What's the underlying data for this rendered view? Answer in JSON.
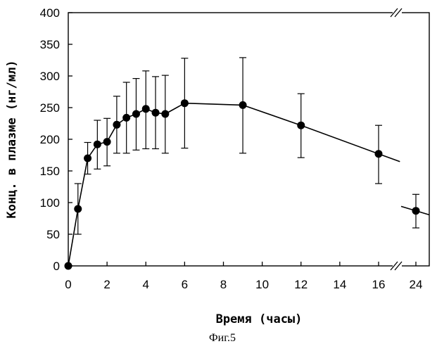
{
  "chart_data": {
    "type": "line",
    "xlabel": "Время (часы)",
    "ylabel": "Конц. в плазме (нг/мл)",
    "caption": "Фиг.5",
    "ylim": [
      0,
      400
    ],
    "xlim": [
      0,
      24
    ],
    "x_axis_break": {
      "between": [
        16,
        24
      ]
    },
    "y_ticks": [
      0,
      50,
      100,
      150,
      200,
      250,
      300,
      350,
      400
    ],
    "x_ticks": [
      0,
      2,
      4,
      6,
      8,
      10,
      12,
      14,
      16,
      24
    ],
    "series": [
      {
        "points": [
          {
            "x": 0,
            "y": 0,
            "err_low": 0,
            "err_high": 0
          },
          {
            "x": 0.5,
            "y": 90,
            "err_low": 50,
            "err_high": 130
          },
          {
            "x": 1,
            "y": 170,
            "err_low": 145,
            "err_high": 195
          },
          {
            "x": 1.5,
            "y": 192,
            "err_low": 153,
            "err_high": 230
          },
          {
            "x": 2,
            "y": 196,
            "err_low": 158,
            "err_high": 233
          },
          {
            "x": 2.5,
            "y": 223,
            "err_low": 178,
            "err_high": 268
          },
          {
            "x": 3,
            "y": 234,
            "err_low": 178,
            "err_high": 290
          },
          {
            "x": 3.5,
            "y": 240,
            "err_low": 183,
            "err_high": 296
          },
          {
            "x": 4,
            "y": 248,
            "err_low": 185,
            "err_high": 308
          },
          {
            "x": 4.5,
            "y": 242,
            "err_low": 185,
            "err_high": 299
          },
          {
            "x": 5,
            "y": 240,
            "err_low": 178,
            "err_high": 301
          },
          {
            "x": 6,
            "y": 257,
            "err_low": 186,
            "err_high": 328
          },
          {
            "x": 9,
            "y": 254,
            "err_low": 178,
            "err_high": 329
          },
          {
            "x": 12,
            "y": 222,
            "err_low": 171,
            "err_high": 272
          },
          {
            "x": 16,
            "y": 177,
            "err_low": 130,
            "err_high": 222
          },
          {
            "x": 24,
            "y": 87,
            "err_low": 60,
            "err_high": 113
          }
        ]
      }
    ]
  }
}
